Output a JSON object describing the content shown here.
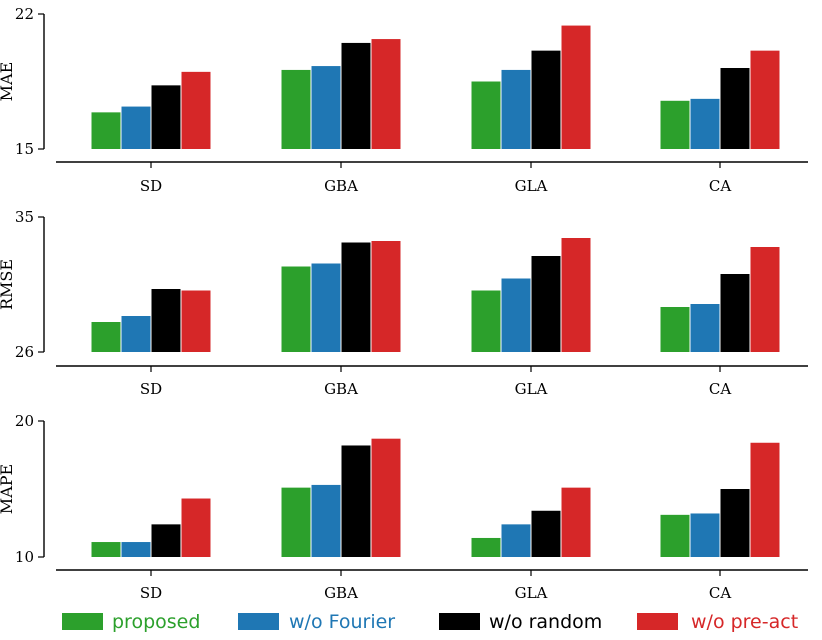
{
  "chart_data": [
    {
      "type": "bar",
      "ylabel": "MAE",
      "ylim": [
        15,
        22
      ],
      "yticks": [
        "15",
        "22"
      ],
      "categories": [
        "SD",
        "GBA",
        "GLA",
        "CA"
      ],
      "series": [
        {
          "name": "proposed",
          "values": [
            16.9,
            19.1,
            18.5,
            17.5
          ]
        },
        {
          "name": "w/o Fourier",
          "values": [
            17.2,
            19.3,
            19.1,
            17.6
          ]
        },
        {
          "name": "w/o random",
          "values": [
            18.3,
            20.5,
            20.1,
            19.2
          ]
        },
        {
          "name": "w/o pre-act",
          "values": [
            19.0,
            20.7,
            21.4,
            20.1
          ]
        }
      ]
    },
    {
      "type": "bar",
      "ylabel": "RMSE",
      "ylim": [
        26,
        35
      ],
      "yticks": [
        "26",
        "35"
      ],
      "categories": [
        "SD",
        "GBA",
        "GLA",
        "CA"
      ],
      "series": [
        {
          "name": "proposed",
          "values": [
            28.0,
            31.7,
            30.1,
            29.0
          ]
        },
        {
          "name": "w/o Fourier",
          "values": [
            28.4,
            31.9,
            30.9,
            29.2
          ]
        },
        {
          "name": "w/o random",
          "values": [
            30.2,
            33.3,
            32.4,
            31.2
          ]
        },
        {
          "name": "w/o pre-act",
          "values": [
            30.1,
            33.4,
            33.6,
            33.0
          ]
        }
      ]
    },
    {
      "type": "bar",
      "ylabel": "MAPE",
      "ylim": [
        10,
        20
      ],
      "yticks": [
        "10",
        "20"
      ],
      "categories": [
        "SD",
        "GBA",
        "GLA",
        "CA"
      ],
      "series": [
        {
          "name": "proposed",
          "values": [
            11.1,
            15.1,
            11.4,
            13.1
          ]
        },
        {
          "name": "w/o Fourier",
          "values": [
            11.1,
            15.3,
            12.4,
            13.2
          ]
        },
        {
          "name": "w/o random",
          "values": [
            12.4,
            18.2,
            13.4,
            15.0
          ]
        },
        {
          "name": "w/o pre-act",
          "values": [
            14.3,
            18.7,
            15.1,
            18.4
          ]
        }
      ]
    }
  ],
  "legend": [
    {
      "label": "proposed",
      "color": "#2ca02c",
      "text_color": "#2ca02c"
    },
    {
      "label": "w/o Fourier",
      "color": "#1f77b4",
      "text_color": "#1f77b4"
    },
    {
      "label": "w/o random",
      "color": "#000000",
      "text_color": "#000000"
    },
    {
      "label": "w/o pre-act",
      "color": "#d62728",
      "text_color": "#d62728"
    }
  ]
}
